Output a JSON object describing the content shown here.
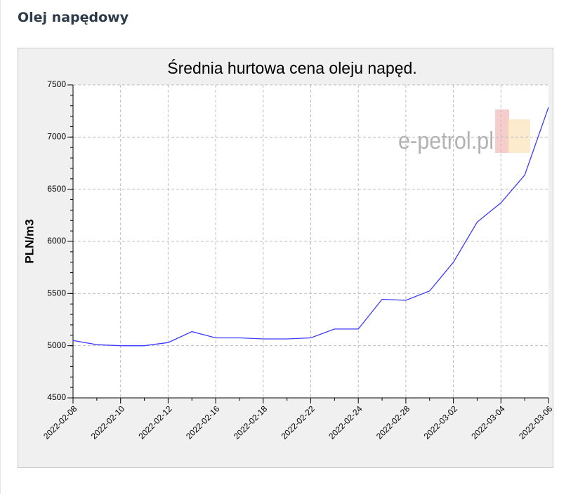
{
  "header": {
    "title": "Olej napędowy"
  },
  "chart_data": {
    "type": "line",
    "title": "Średnia hurtowa cena oleju napęd.",
    "y_label": "PLN/m3",
    "watermark": "e-petrol.pl",
    "categories": [
      "2022-02-08",
      null,
      "2022-02-10",
      null,
      "2022-02-12",
      null,
      "2022-02-16",
      null,
      "2022-02-18",
      null,
      "2022-02-22",
      null,
      "2022-02-24",
      null,
      "2022-02-28",
      null,
      "2022-03-02",
      null,
      "2022-03-04",
      null,
      "2022-03-06"
    ],
    "series": [
      {
        "name": "Średnia hurtowa cena oleju napęd.",
        "color": "#3a3aff",
        "values": [
          5050,
          5010,
          5000,
          5000,
          5030,
          5135,
          5075,
          5075,
          5065,
          5065,
          5075,
          5160,
          5160,
          5445,
          5435,
          5525,
          5800,
          6185,
          6370,
          6635,
          7285
        ]
      }
    ],
    "ylim": [
      4500,
      7500
    ],
    "yticks": [
      4500,
      5000,
      5500,
      6000,
      6500,
      7000,
      7500
    ],
    "grid": true
  }
}
